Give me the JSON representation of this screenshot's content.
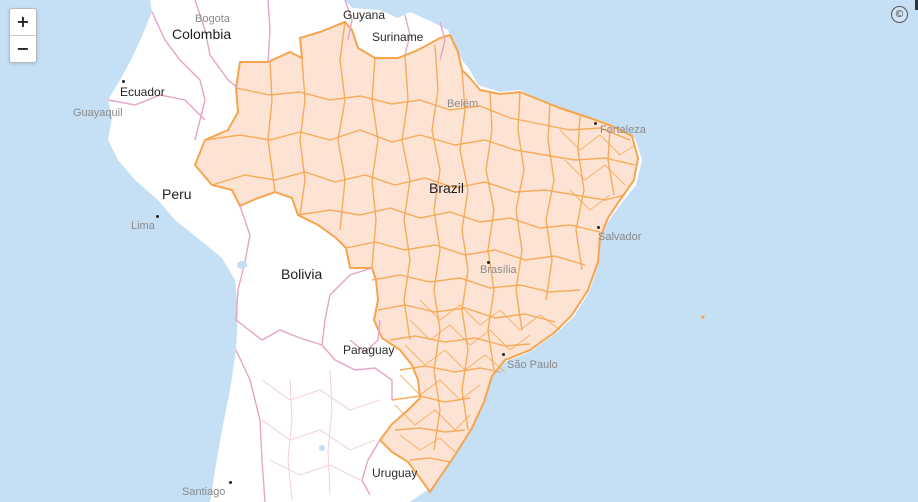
{
  "map": {
    "colors": {
      "ocean": "#c5dff5",
      "land": "#ffffff",
      "border": "#e8a3c8",
      "region_fill": "#fde3d4",
      "region_stroke": "#f5a54e",
      "label": "#222222",
      "minor_label": "#8a8a8a"
    },
    "country_labels": {
      "colombia": "Colombia",
      "peru": "Peru",
      "bolivia": "Bolivia",
      "brazil": "Brazil",
      "paraguay": "Paraguay",
      "uruguay": "Uruguay",
      "suriname": "Suriname",
      "guyana": "Guyana"
    },
    "city_labels": {
      "bogota": "Bogota",
      "ecuador": "Ecuador",
      "guayaquil": "Guayaquil",
      "lima": "Lima",
      "belem": "Belém",
      "fortaleza": "Fortaleza",
      "salvador": "Salvador",
      "brasilia": "Brasília",
      "sao_paulo": "São Paulo",
      "santiago": "Santiago"
    }
  },
  "controls": {
    "zoom_in": "+",
    "zoom_out": "−",
    "attribution_icon": "©"
  }
}
